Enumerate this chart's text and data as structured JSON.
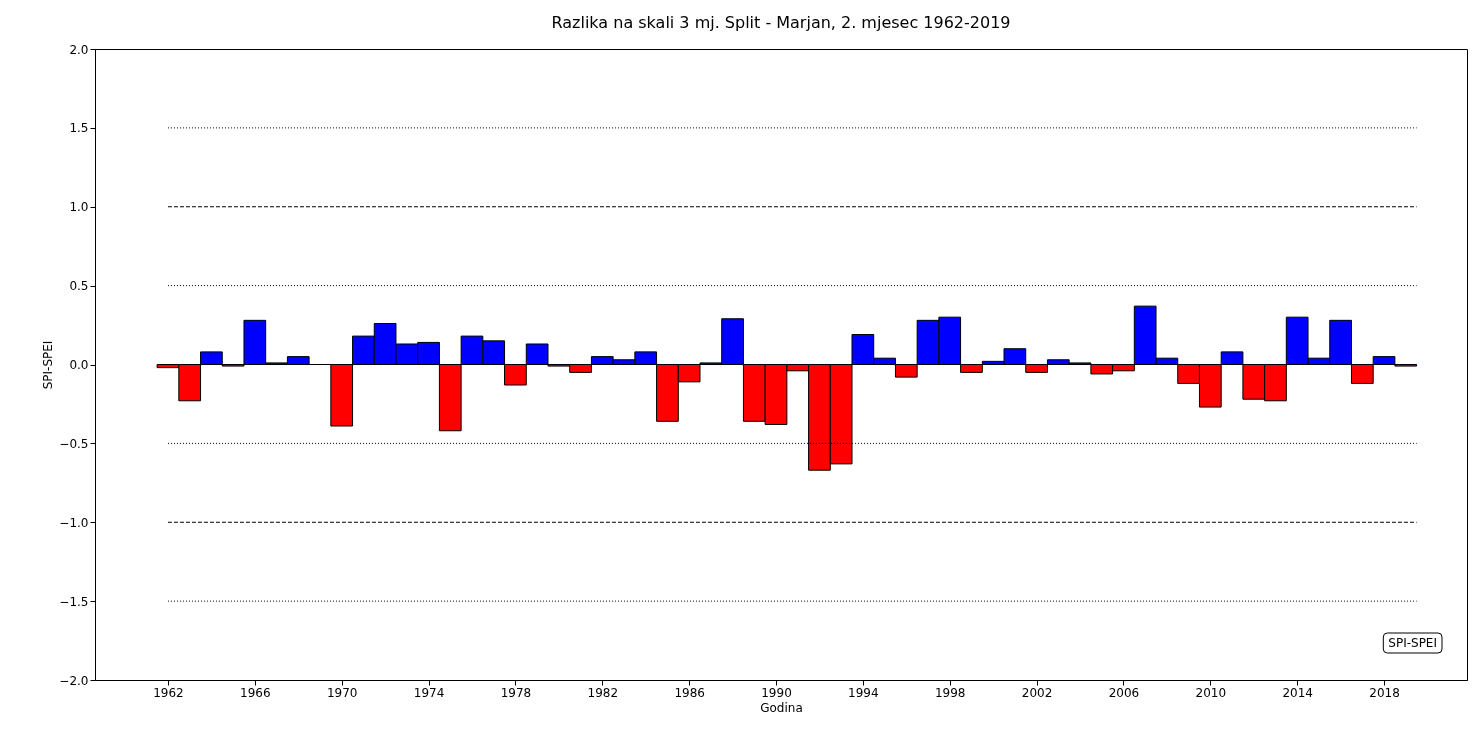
{
  "chart_data": {
    "type": "bar",
    "title": "Razlika na skali 3 mj. Split - Marjan, 2. mjesec 1962-2019",
    "xlabel": "Godina",
    "ylabel": "SPI-SPEI",
    "x": [
      1962,
      1963,
      1964,
      1965,
      1966,
      1967,
      1968,
      1969,
      1970,
      1971,
      1972,
      1973,
      1974,
      1975,
      1976,
      1977,
      1978,
      1979,
      1980,
      1981,
      1982,
      1983,
      1984,
      1985,
      1986,
      1987,
      1988,
      1989,
      1990,
      1991,
      1992,
      1993,
      1994,
      1995,
      1996,
      1997,
      1998,
      1999,
      2000,
      2001,
      2002,
      2003,
      2004,
      2005,
      2006,
      2007,
      2008,
      2009,
      2010,
      2011,
      2012,
      2013,
      2014,
      2015,
      2016,
      2017,
      2018,
      2019
    ],
    "values": [
      -0.02,
      -0.23,
      0.08,
      -0.01,
      0.28,
      0.01,
      0.05,
      0.0,
      -0.39,
      0.18,
      0.26,
      0.13,
      0.14,
      -0.42,
      0.18,
      0.15,
      -0.13,
      0.13,
      -0.01,
      -0.05,
      0.05,
      0.03,
      0.08,
      -0.36,
      -0.11,
      0.01,
      0.29,
      -0.36,
      -0.38,
      -0.04,
      -0.67,
      -0.63,
      0.19,
      0.04,
      -0.08,
      0.28,
      0.3,
      -0.05,
      0.02,
      0.1,
      -0.05,
      0.03,
      0.01,
      -0.06,
      -0.04,
      0.37,
      0.04,
      -0.12,
      -0.27,
      0.08,
      -0.22,
      -0.23,
      0.3,
      0.04,
      0.28,
      -0.12,
      0.05,
      -0.01
    ],
    "colors": [
      "#ff0000",
      "#ff0000",
      "#0000ff",
      "#ff0000",
      "#0000ff",
      "#0000ff",
      "#0000ff",
      "#000000",
      "#ff0000",
      "#0000ff",
      "#0000ff",
      "#0000ff",
      "#0000ff",
      "#ff0000",
      "#0000ff",
      "#0000ff",
      "#ff0000",
      "#0000ff",
      "#ff0000",
      "#ff0000",
      "#0000ff",
      "#0000ff",
      "#0000ff",
      "#ff0000",
      "#ff0000",
      "#0000ff",
      "#0000ff",
      "#ff0000",
      "#ff0000",
      "#ff0000",
      "#ff0000",
      "#ff0000",
      "#0000ff",
      "#0000ff",
      "#ff0000",
      "#0000ff",
      "#0000ff",
      "#ff0000",
      "#0000ff",
      "#0000ff",
      "#ff0000",
      "#0000ff",
      "#0000ff",
      "#ff0000",
      "#ff0000",
      "#0000ff",
      "#0000ff",
      "#ff0000",
      "#ff0000",
      "#0000ff",
      "#ff0000",
      "#ff0000",
      "#0000ff",
      "#0000ff",
      "#0000ff",
      "#ff0000",
      "#0000ff",
      "#ff0000"
    ],
    "xlim": [
      1958.64,
      2021.82
    ],
    "xticks": [
      1962,
      1966,
      1970,
      1974,
      1978,
      1982,
      1986,
      1990,
      1994,
      1998,
      2002,
      2006,
      2010,
      2014,
      2018
    ],
    "ylim": [
      -2,
      2
    ],
    "yticks": [
      {
        "value": -2,
        "label": "−2.0"
      },
      {
        "value": -1.5,
        "label": "−1.5"
      },
      {
        "value": -1,
        "label": "−1.0"
      },
      {
        "value": -0.5,
        "label": "−0.5"
      },
      {
        "value": 0,
        "label": "0.0"
      },
      {
        "value": 0.5,
        "label": "0.5"
      },
      {
        "value": 1,
        "label": "1.0"
      },
      {
        "value": 1.5,
        "label": "1.5"
      },
      {
        "value": 2,
        "label": "2.0"
      }
    ],
    "ref_lines": [
      {
        "axis": "y",
        "value": 1.5,
        "color": "#000000",
        "line_style": "dotted"
      },
      {
        "axis": "y",
        "value": 1,
        "color": "#000000",
        "line_style": "dashed"
      },
      {
        "axis": "y",
        "value": 0.5,
        "color": "#000000",
        "line_style": "dotted"
      },
      {
        "axis": "y",
        "value": -0.5,
        "color": "#000000",
        "line_style": "dotted"
      },
      {
        "axis": "y",
        "value": -1,
        "color": "#000000",
        "line_style": "dashed"
      },
      {
        "axis": "y",
        "value": -1.5,
        "color": "#000000",
        "line_style": "dotted"
      }
    ],
    "annotations": [
      "SPI-SPEI"
    ]
  }
}
